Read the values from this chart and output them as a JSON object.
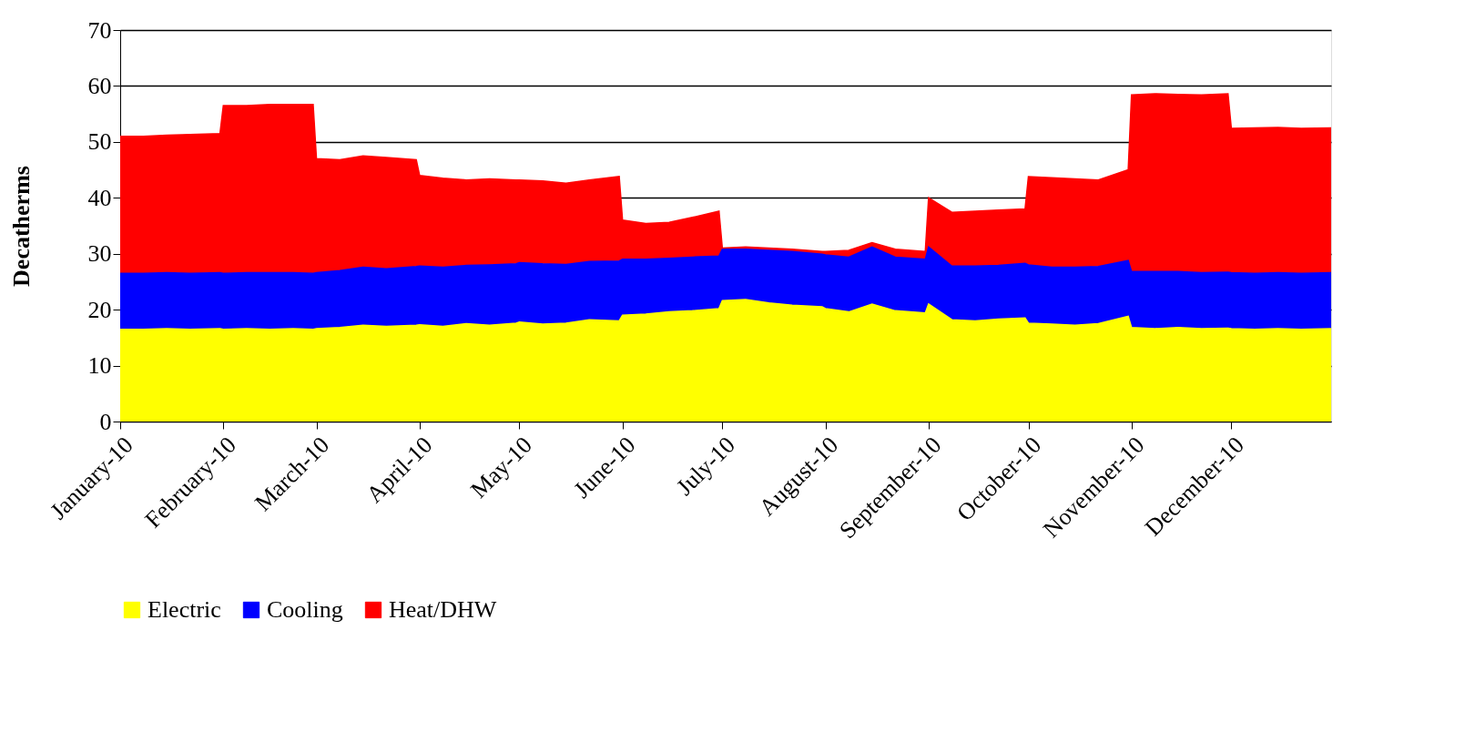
{
  "chart_data": {
    "type": "area",
    "stacked": true,
    "ylabel": "Decatherms",
    "x": [
      "2010-01-01",
      "2010-01-08",
      "2010-01-15",
      "2010-01-22",
      "2010-01-31",
      "2010-02-01",
      "2010-02-08",
      "2010-02-15",
      "2010-02-22",
      "2010-02-28",
      "2010-03-01",
      "2010-03-08",
      "2010-03-15",
      "2010-03-22",
      "2010-03-31",
      "2010-04-01",
      "2010-04-08",
      "2010-04-15",
      "2010-04-22",
      "2010-04-30",
      "2010-05-01",
      "2010-05-08",
      "2010-05-15",
      "2010-05-22",
      "2010-05-31",
      "2010-06-01",
      "2010-06-08",
      "2010-06-15",
      "2010-06-22",
      "2010-06-30",
      "2010-07-01",
      "2010-07-08",
      "2010-07-15",
      "2010-07-22",
      "2010-07-31",
      "2010-08-01",
      "2010-08-08",
      "2010-08-15",
      "2010-08-22",
      "2010-08-31",
      "2010-09-01",
      "2010-09-08",
      "2010-09-15",
      "2010-09-22",
      "2010-09-30",
      "2010-10-01",
      "2010-10-08",
      "2010-10-15",
      "2010-10-22",
      "2010-10-31",
      "2010-11-01",
      "2010-11-08",
      "2010-11-15",
      "2010-11-22",
      "2010-11-30",
      "2010-12-01",
      "2010-12-08",
      "2010-12-15",
      "2010-12-22",
      "2010-12-31"
    ],
    "series": [
      {
        "name": "Electric",
        "color": "#ffff00",
        "values": [
          16.5,
          16.5,
          16.6,
          16.5,
          16.6,
          16.5,
          16.6,
          16.5,
          16.6,
          16.5,
          16.6,
          16.8,
          17.2,
          17.0,
          17.2,
          17.3,
          17.0,
          17.5,
          17.2,
          17.6,
          17.8,
          17.4,
          17.6,
          18.2,
          18.0,
          19.0,
          19.2,
          19.6,
          19.8,
          20.2,
          21.6,
          21.8,
          21.2,
          20.8,
          20.5,
          20.2,
          19.6,
          21.0,
          19.8,
          19.4,
          21.0,
          18.2,
          18.0,
          18.3,
          18.5,
          17.6,
          17.4,
          17.2,
          17.5,
          18.8,
          16.8,
          16.6,
          16.8,
          16.6,
          16.7,
          16.6,
          16.5,
          16.6,
          16.5,
          16.6
        ]
      },
      {
        "name": "Cooling",
        "color": "#0000ff",
        "values": [
          10.0,
          10.0,
          10.0,
          10.0,
          10.0,
          10.0,
          10.0,
          10.1,
          10.0,
          10.0,
          10.0,
          10.2,
          10.4,
          10.3,
          10.5,
          10.5,
          10.6,
          10.4,
          10.8,
          10.6,
          10.6,
          10.8,
          10.5,
          10.4,
          10.7,
          10.0,
          9.8,
          9.6,
          9.6,
          9.4,
          9.2,
          9.0,
          9.4,
          9.6,
          9.4,
          9.6,
          9.8,
          10.2,
          9.6,
          9.6,
          10.2,
          9.6,
          9.8,
          9.6,
          9.8,
          10.4,
          10.2,
          10.4,
          10.2,
          10.0,
          10.0,
          10.2,
          10.0,
          10.0,
          10.0,
          10.0,
          10.0,
          10.0,
          10.0,
          10.0
        ]
      },
      {
        "name": "Heat/DHW",
        "color": "#ff0000",
        "values": [
          24.5,
          24.5,
          24.6,
          24.8,
          24.9,
          30.0,
          29.9,
          30.1,
          30.1,
          30.2,
          20.4,
          19.8,
          19.9,
          19.9,
          19.1,
          16.2,
          15.9,
          15.3,
          15.4,
          15.0,
          14.8,
          14.8,
          14.5,
          14.6,
          15.1,
          7.0,
          6.4,
          6.4,
          7.1,
          8.0,
          0.2,
          0.4,
          0.4,
          0.4,
          0.5,
          0.6,
          1.2,
          0.8,
          1.4,
          1.4,
          8.8,
          9.6,
          9.8,
          9.9,
          9.7,
          15.8,
          16.0,
          15.8,
          15.5,
          16.2,
          31.6,
          31.8,
          31.7,
          31.8,
          31.9,
          25.8,
          26.0,
          26.0,
          25.9,
          25.9
        ]
      }
    ],
    "xlim": [
      "2010-01-01",
      "2010-12-31"
    ],
    "xticks": [
      {
        "value": "2010-01-01",
        "label": "January-10"
      },
      {
        "value": "2010-02-01",
        "label": "February-10"
      },
      {
        "value": "2010-03-01",
        "label": "March-10"
      },
      {
        "value": "2010-04-01",
        "label": "April-10"
      },
      {
        "value": "2010-05-01",
        "label": "May-10"
      },
      {
        "value": "2010-06-01",
        "label": "June-10"
      },
      {
        "value": "2010-07-01",
        "label": "July-10"
      },
      {
        "value": "2010-08-01",
        "label": "August-10"
      },
      {
        "value": "2010-09-01",
        "label": "September-10"
      },
      {
        "value": "2010-10-01",
        "label": "October-10"
      },
      {
        "value": "2010-11-01",
        "label": "November-10"
      },
      {
        "value": "2010-12-01",
        "label": "December-10"
      }
    ],
    "ylim": [
      0,
      70
    ],
    "yticks": [
      0,
      10,
      20,
      30,
      40,
      50,
      60,
      70
    ],
    "grid": "y",
    "legend": "bottom"
  }
}
